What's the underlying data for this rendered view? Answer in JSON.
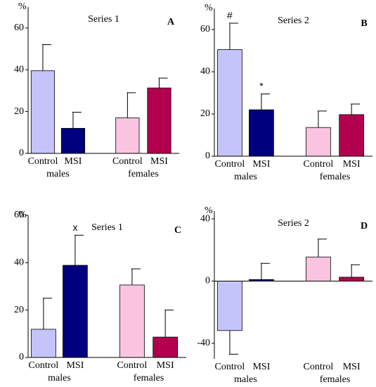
{
  "chart_data": [
    {
      "type": "bar",
      "panel": "A",
      "title": "Series 1",
      "ylabel": "%",
      "categories": [
        "Control",
        "MSI",
        "Control",
        "MSI"
      ],
      "groups": [
        "males",
        "females"
      ],
      "values": [
        39.5,
        12,
        17,
        31.3
      ],
      "errors": [
        12.5,
        7.7,
        12,
        4.7
      ],
      "colors": [
        "#c4c4fa",
        "#00007e",
        "#fac4e0",
        "#b2004e"
      ],
      "ylim": [
        0,
        70
      ],
      "yticks": [
        0,
        20,
        40,
        60
      ],
      "annotations": []
    },
    {
      "type": "bar",
      "panel": "B",
      "title": "Series 2",
      "ylabel": "%",
      "categories": [
        "Control",
        "MSI",
        "Control",
        "MSI"
      ],
      "groups": [
        "males",
        "females"
      ],
      "values": [
        50.5,
        22,
        13.6,
        19.7
      ],
      "errors": [
        12.5,
        7.5,
        7.8,
        5
      ],
      "colors": [
        "#c4c4fa",
        "#00007e",
        "#fac4e0",
        "#b2004e"
      ],
      "ylim": [
        0,
        70
      ],
      "yticks": [
        0,
        20,
        40,
        60
      ],
      "annotations": [
        {
          "text": "#",
          "index": 0
        },
        {
          "text": "*",
          "index": 1
        }
      ]
    },
    {
      "type": "bar",
      "panel": "C",
      "title": "Series 1",
      "ylabel": "%",
      "categories": [
        "Control",
        "MSI",
        "Control",
        "MSI"
      ],
      "groups": [
        "males",
        "females"
      ],
      "values": [
        11.9,
        38.9,
        30.6,
        8.6
      ],
      "errors": [
        13.1,
        12.7,
        6.8,
        11.4
      ],
      "colors": [
        "#c4c4fa",
        "#00007e",
        "#fac4e0",
        "#b2004e"
      ],
      "ylim": [
        0,
        60
      ],
      "yticks": [
        0,
        20,
        40,
        60
      ],
      "annotations": [
        {
          "text": "x",
          "index": 1
        }
      ]
    },
    {
      "type": "bar",
      "panel": "D",
      "title": "Series 2",
      "ylabel": "%",
      "categories": [
        "Control",
        "MSI",
        "Control",
        "MSI"
      ],
      "groups": [
        "males",
        "females"
      ],
      "values": [
        -31.8,
        1,
        15.5,
        2.5
      ],
      "errors": [
        15.2,
        10.4,
        11.5,
        8
      ],
      "colors": [
        "#c4c4fa",
        "#00007e",
        "#fac4e0",
        "#b2004e"
      ],
      "ylim": [
        -50,
        45
      ],
      "yticks": [
        -40,
        0,
        40
      ],
      "annotations": []
    }
  ]
}
